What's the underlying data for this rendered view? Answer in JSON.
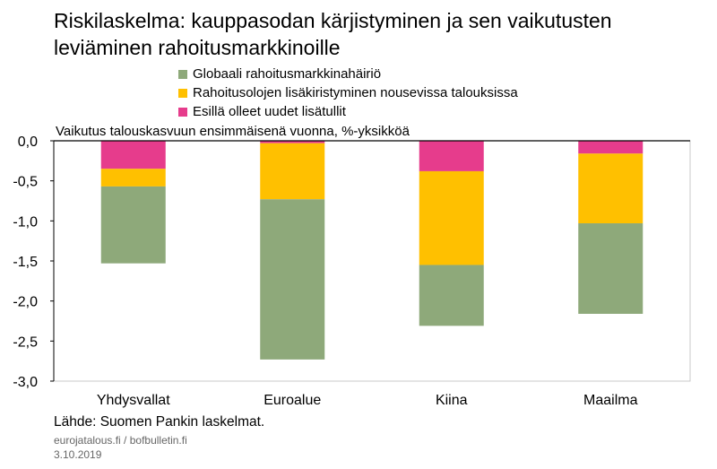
{
  "title": "Riskilaskelma: kauppasodan kärjistyminen ja sen vaikutusten leviäminen rahoitusmarkkinoille",
  "colors": {
    "series_global": "#8ea97a",
    "series_emerging": "#ffc000",
    "series_tariffs": "#e63c8c",
    "axis": "#000000",
    "plot_border": "#c8c8c8"
  },
  "chart_data": {
    "type": "bar",
    "stacked": true,
    "title": "Riskilaskelma: kauppasodan kärjistyminen ja sen vaikutusten leviäminen rahoitusmarkkinoille",
    "ylabel": "Vaikutus talouskasvuun ensimmäisenä vuonna, %-yksikköä",
    "xlabel": "",
    "categories": [
      "Yhdysvallat",
      "Euroalue",
      "Kiina",
      "Maailma"
    ],
    "ylim": [
      -3.0,
      0.0
    ],
    "yticks": [
      0.0,
      -0.5,
      -1.0,
      -1.5,
      -2.0,
      -2.5,
      -3.0
    ],
    "ytick_labels": [
      "0,0",
      "-0,5",
      "-1,0",
      "-1,5",
      "-2,0",
      "-2,5",
      "-3,0"
    ],
    "legend_position": "top",
    "series": [
      {
        "name": "Globaali rahoitusmarkkinahäiriö",
        "color": "#8ea97a",
        "values": [
          -0.96,
          -2.0,
          -0.76,
          -1.13
        ]
      },
      {
        "name": "Rahoitusolojen lisäkiristyminen nousevissa talouksissa",
        "color": "#ffc000",
        "values": [
          -0.22,
          -0.7,
          -1.17,
          -0.87
        ]
      },
      {
        "name": "Esillä olleet uudet lisätullit",
        "color": "#e63c8c",
        "values": [
          -0.35,
          -0.03,
          -0.38,
          -0.16
        ]
      }
    ],
    "source": "Lähde: Suomen Pankin laskelmat.",
    "website": "eurojatalous.fi  / bofbulletin.fi",
    "date": "3.10.2019"
  }
}
